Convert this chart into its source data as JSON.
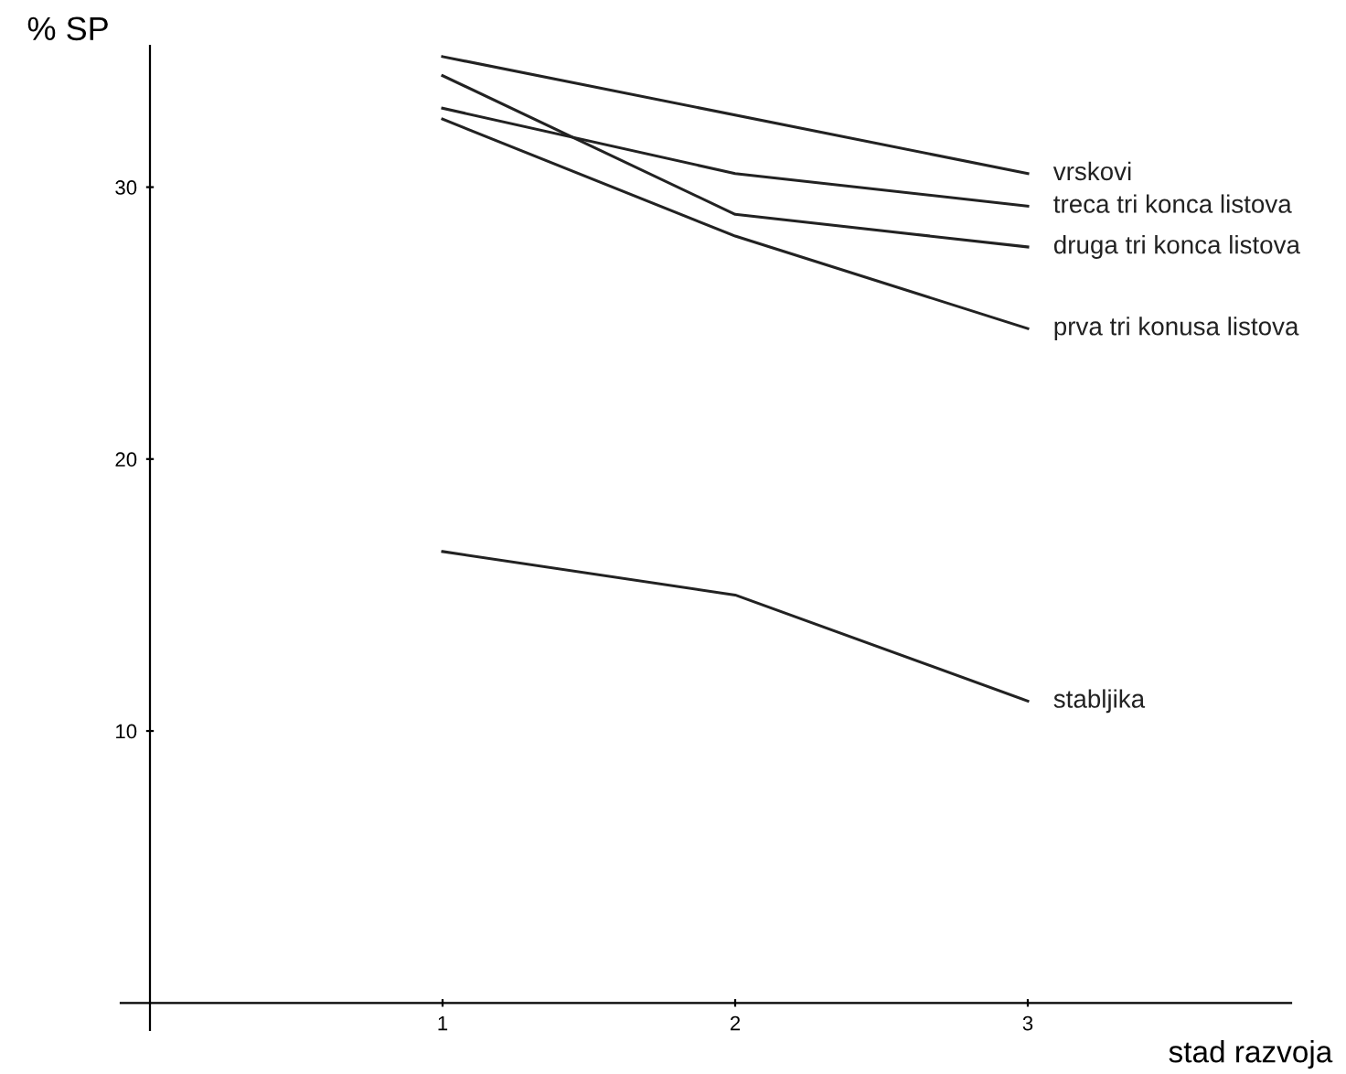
{
  "chart_data": {
    "type": "line",
    "xlabel": "stad razvoja",
    "ylabel": "% SP",
    "x": [
      1,
      2,
      3
    ],
    "series": [
      {
        "name": "vrskovi",
        "color": "#222222",
        "x": [
          1,
          3
        ],
        "values": [
          34.8,
          30.5
        ]
      },
      {
        "name": "treca tri konca listova",
        "color": "#222222",
        "values": [
          32.9,
          30.5,
          29.3
        ]
      },
      {
        "name": "druga tri konca listova",
        "color": "#222222",
        "values": [
          34.1,
          29.0,
          27.8
        ]
      },
      {
        "name": "prva tri konusa listova",
        "color": "#222222",
        "values": [
          32.5,
          28.2,
          24.8
        ]
      },
      {
        "name": "stabljika",
        "color": "#222222",
        "values": [
          16.6,
          15.0,
          11.1
        ]
      }
    ],
    "xlim": [
      -0.1,
      3.9
    ],
    "ylim": [
      -1,
      35.2
    ],
    "xticks": [
      1,
      2,
      3
    ],
    "yticks": [
      10,
      20,
      30
    ],
    "grid": false,
    "legend": false,
    "marker": "none",
    "line_style": "solid"
  }
}
